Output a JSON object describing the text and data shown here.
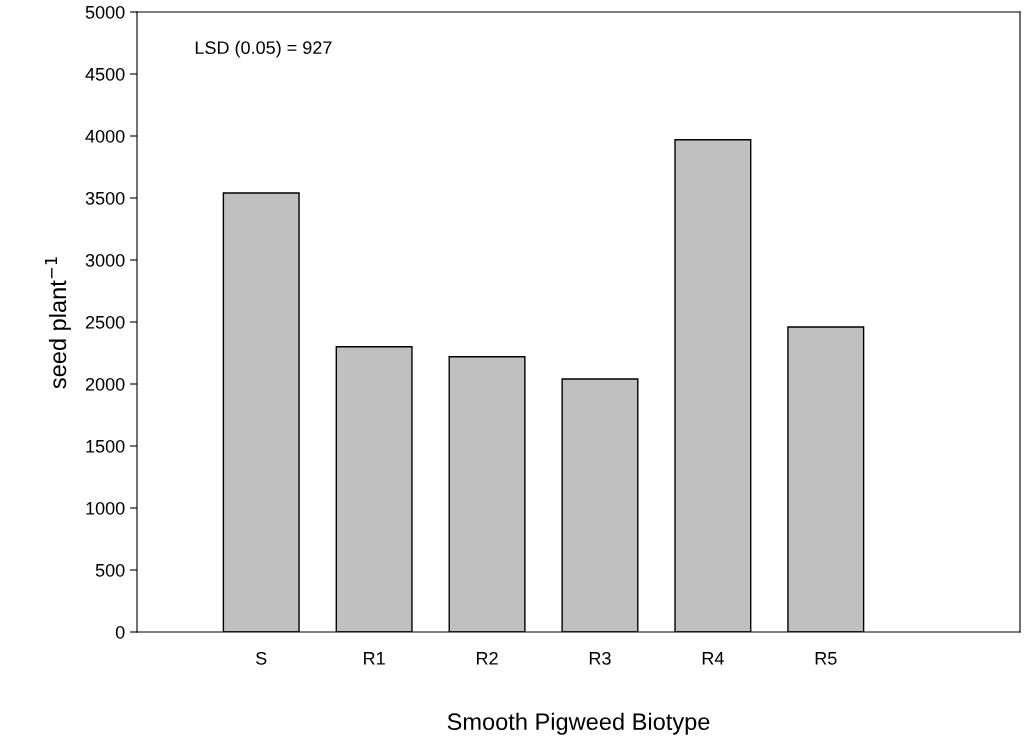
{
  "chart_data": {
    "type": "bar",
    "xlabel": "Smooth Pigweed Biotype",
    "ylabel": "seed plant$^{−1}$",
    "categories": [
      "S",
      "R1",
      "R2",
      "R3",
      "R4",
      "R5"
    ],
    "values": [
      3540,
      2300,
      2220,
      2040,
      3970,
      2460
    ],
    "color": "#c0c0c0",
    "ylim": [
      0,
      5000
    ],
    "yticks": [
      0,
      500,
      1000,
      1500,
      2000,
      2500,
      3000,
      3500,
      4000,
      4500,
      5000
    ],
    "grid": false,
    "annotations": [
      "LSD (0.05) = 927"
    ]
  }
}
